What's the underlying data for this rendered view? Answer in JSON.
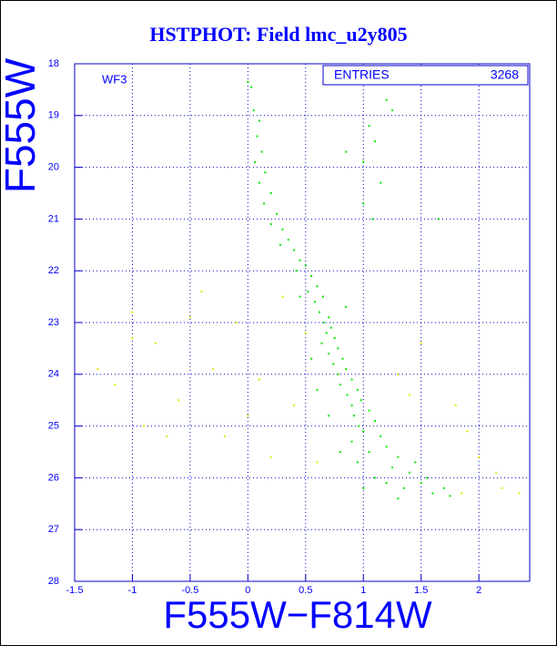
{
  "chart_data": {
    "type": "scatter",
    "title": "HSTPHOT: Field lmc_u2y805",
    "xlabel": "F555W−F814W",
    "ylabel": "F555W",
    "annotation": "WF3",
    "stats": {
      "label": "ENTRIES",
      "value": 3268
    },
    "xlim": [
      -1.5,
      2.44
    ],
    "ylim": [
      28,
      18
    ],
    "xticks": [
      -1.5,
      -1,
      -0.5,
      0,
      0.5,
      1,
      1.5,
      2
    ],
    "yticks": [
      18,
      19,
      20,
      21,
      22,
      23,
      24,
      25,
      26,
      27,
      28
    ],
    "grid": true,
    "series": [
      {
        "color": "#00e600",
        "x": [
          0.0,
          0.03,
          0.05,
          0.1,
          0.08,
          0.12,
          0.06,
          0.15,
          0.1,
          0.2,
          0.14,
          0.25,
          0.2,
          0.3,
          0.35,
          0.28,
          0.4,
          0.45,
          0.5,
          0.42,
          0.55,
          0.6,
          0.52,
          0.65,
          0.58,
          0.62,
          0.7,
          0.66,
          0.72,
          0.68,
          0.75,
          0.64,
          0.78,
          0.7,
          0.82,
          0.74,
          0.85,
          0.78,
          0.9,
          0.8,
          0.95,
          0.86,
          0.98,
          0.9,
          1.05,
          0.92,
          1.1,
          0.96,
          1.0,
          1.15,
          0.9,
          1.2,
          1.05,
          1.3,
          0.95,
          1.25,
          1.4,
          1.1,
          1.5,
          1.35,
          1.6,
          1.2,
          1.45,
          1.75,
          0.8,
          0.7,
          0.6,
          0.55,
          0.85,
          0.45,
          1.0,
          1.55,
          1.3,
          1.7,
          1.05,
          1.1,
          1.0,
          1.15,
          1.0,
          1.08,
          0.85,
          1.2,
          1.25,
          1.65
        ],
        "values": [
          18.35,
          18.45,
          18.9,
          19.1,
          19.4,
          19.7,
          19.9,
          20.1,
          20.3,
          20.5,
          20.7,
          20.9,
          21.1,
          21.2,
          21.4,
          21.5,
          21.6,
          21.8,
          21.9,
          22.0,
          22.1,
          22.3,
          22.4,
          22.5,
          22.6,
          22.8,
          22.9,
          23.0,
          23.1,
          23.2,
          23.3,
          23.4,
          23.5,
          23.6,
          23.7,
          23.8,
          23.9,
          24.0,
          24.1,
          24.2,
          24.3,
          24.4,
          24.5,
          24.6,
          24.7,
          24.8,
          24.9,
          25.0,
          25.1,
          25.2,
          25.3,
          25.4,
          25.5,
          25.6,
          25.7,
          25.8,
          25.9,
          26.0,
          26.1,
          26.2,
          26.3,
          26.1,
          25.7,
          26.35,
          25.5,
          24.8,
          24.3,
          23.7,
          22.7,
          22.5,
          26.2,
          26.0,
          26.4,
          26.2,
          19.2,
          19.5,
          19.9,
          20.3,
          20.7,
          21.0,
          19.7,
          18.7,
          18.9,
          21.0
        ]
      },
      {
        "color": "#e6e600",
        "x": [
          -1.3,
          -1.15,
          -1.0,
          -0.8,
          -0.6,
          -0.5,
          -0.3,
          -0.2,
          0.0,
          0.2,
          0.3,
          0.4,
          0.5,
          1.3,
          1.5,
          1.8,
          2.0,
          2.2,
          2.35,
          1.9,
          1.4,
          -0.9,
          -0.7,
          0.1,
          0.6,
          -1.0,
          -0.4,
          1.85,
          2.15,
          -0.1
        ],
        "values": [
          23.9,
          24.2,
          22.8,
          23.4,
          24.5,
          22.9,
          23.9,
          25.2,
          24.8,
          25.6,
          22.5,
          24.6,
          23.2,
          24.0,
          23.4,
          24.6,
          25.6,
          26.2,
          26.3,
          25.1,
          24.4,
          25.0,
          25.2,
          24.1,
          25.7,
          23.3,
          22.4,
          26.3,
          25.9,
          23.0
        ]
      }
    ]
  }
}
